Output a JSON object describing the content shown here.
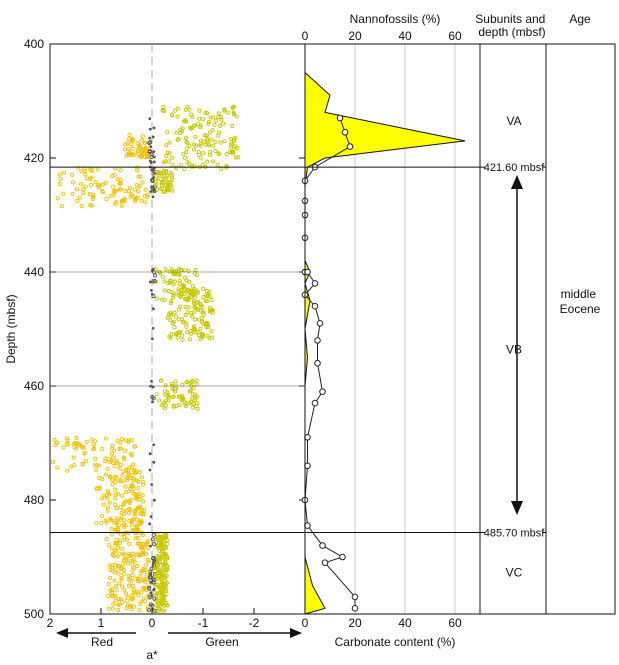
{
  "chart_data": [
    {
      "type": "scatter",
      "panel": "color reflectance a*",
      "ylabel": "Depth (mbsf)",
      "xlabel": "a*",
      "xlim": [
        2,
        -3
      ],
      "ylim": [
        400,
        500
      ],
      "y_ticks": [
        "400",
        "420",
        "440",
        "460",
        "480",
        "500"
      ],
      "x_ticks": [
        "2",
        "1",
        "0",
        "-1",
        "-2"
      ],
      "direction_labels": {
        "left": "Red",
        "right": "Green"
      },
      "colors": {
        "red_side": "#f5c000",
        "green_side": "#c8c800",
        "carbonate_fill": "#ffff00",
        "near_zero": "#555555"
      },
      "clusters": [
        {
          "depth": [
            411,
            420
          ],
          "a_star": [
            -0.2,
            -1.7
          ]
        },
        {
          "depth": [
            416,
            420
          ],
          "a_star": [
            0.55,
            0.0
          ]
        },
        {
          "depth": [
            420.5,
            422
          ],
          "a_star": [
            -0.15,
            -1.5
          ]
        },
        {
          "depth": [
            421.5,
            428.5
          ],
          "a_star": [
            1.9,
            0.05
          ]
        },
        {
          "depth": [
            422,
            426
          ],
          "a_star": [
            0.0,
            -0.4
          ]
        },
        {
          "depth": [
            439.5,
            445
          ],
          "a_star": [
            0.0,
            -0.9
          ]
        },
        {
          "depth": [
            443,
            452
          ],
          "a_star": [
            -0.3,
            -1.2
          ]
        },
        {
          "depth": [
            459,
            464
          ],
          "a_star": [
            0.0,
            -0.9
          ]
        },
        {
          "depth": [
            469,
            475
          ],
          "a_star": [
            1.95,
            0.3
          ]
        },
        {
          "depth": [
            475,
            485.5
          ],
          "a_star": [
            1.1,
            0.15
          ]
        },
        {
          "depth": [
            485.5,
            499.5
          ],
          "a_star": [
            0.9,
            0.0
          ]
        },
        {
          "depth": [
            486,
            499.5
          ],
          "a_star": [
            0.0,
            -0.3
          ]
        }
      ]
    },
    {
      "type": "line",
      "panel": "nannofossils and carbonate",
      "top_label": "Nannofossils (%)",
      "bottom_label": "Carbonate content (%)",
      "xlim": [
        0,
        70
      ],
      "ylim": [
        400,
        500
      ],
      "x_ticks": [
        "0",
        "20",
        "40",
        "60"
      ],
      "series": [
        {
          "kind": "nannofossils_area",
          "x": [
            0,
            0,
            10,
            8,
            64,
            8,
            1,
            0,
            0,
            0,
            2,
            0,
            2,
            0,
            1,
            0,
            0,
            0,
            0,
            0,
            0,
            0,
            0,
            3,
            8,
            0
          ],
          "y": [
            400,
            405,
            409,
            412,
            417,
            420,
            421.6,
            425,
            430,
            438,
            440,
            442,
            445,
            450,
            455,
            460,
            465,
            470,
            475,
            480,
            485,
            488,
            490,
            495,
            499,
            500
          ]
        },
        {
          "kind": "carbonate_points",
          "x": [
            14,
            16,
            18,
            4,
            0,
            0,
            0,
            0,
            0,
            1,
            4,
            0,
            4,
            6,
            5,
            5,
            7,
            4,
            1,
            1,
            0,
            1,
            7,
            15,
            8,
            20,
            20
          ],
          "y": [
            413,
            415.5,
            418,
            421.6,
            424,
            427.5,
            430,
            434,
            440,
            440,
            442,
            444,
            446,
            449,
            452,
            456,
            461,
            463,
            469,
            474,
            480,
            484.5,
            488,
            490,
            491,
            497,
            499
          ]
        }
      ]
    },
    {
      "type": "table",
      "panel": "lithology",
      "headers": {
        "subunits": "Subunits and depth (mbsf)",
        "age": "Age"
      },
      "boundaries": [
        {
          "depth": 421.6,
          "label": "421.60 mbsf"
        },
        {
          "depth": 485.7,
          "label": "485.70 mbsf"
        }
      ],
      "subunits": [
        {
          "name": "VA",
          "depth": 413.5
        },
        {
          "name": "VB",
          "depth": 453.6
        },
        {
          "name": "VC",
          "depth": 492.7
        }
      ],
      "age": "middle Eocene"
    }
  ]
}
